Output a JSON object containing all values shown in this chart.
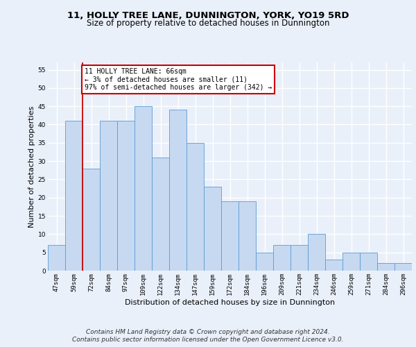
{
  "title": "11, HOLLY TREE LANE, DUNNINGTON, YORK, YO19 5RD",
  "subtitle": "Size of property relative to detached houses in Dunnington",
  "xlabel": "Distribution of detached houses by size in Dunnington",
  "ylabel": "Number of detached properties",
  "bar_labels": [
    "47sqm",
    "59sqm",
    "72sqm",
    "84sqm",
    "97sqm",
    "109sqm",
    "122sqm",
    "134sqm",
    "147sqm",
    "159sqm",
    "172sqm",
    "184sqm",
    "196sqm",
    "209sqm",
    "221sqm",
    "234sqm",
    "246sqm",
    "259sqm",
    "271sqm",
    "284sqm",
    "296sqm"
  ],
  "bar_values": [
    7,
    41,
    28,
    41,
    41,
    45,
    31,
    44,
    35,
    23,
    19,
    19,
    5,
    7,
    7,
    10,
    3,
    5,
    5,
    2,
    2
  ],
  "bar_color": "#c6d9f0",
  "bar_edge_color": "#5b9bd5",
  "vline_x": 1.5,
  "vline_color": "#cc0000",
  "annotation_text": "11 HOLLY TREE LANE: 66sqm\n← 3% of detached houses are smaller (11)\n97% of semi-detached houses are larger (342) →",
  "annotation_box_color": "white",
  "annotation_box_edge": "#cc0000",
  "ylim": [
    0,
    57
  ],
  "yticks": [
    0,
    5,
    10,
    15,
    20,
    25,
    30,
    35,
    40,
    45,
    50,
    55
  ],
  "footer": "Contains HM Land Registry data © Crown copyright and database right 2024.\nContains public sector information licensed under the Open Government Licence v3.0.",
  "bg_color": "#eaf0fa",
  "plot_bg_color": "#eaf0fa",
  "grid_color": "#ffffff",
  "title_fontsize": 9.5,
  "subtitle_fontsize": 8.5,
  "axis_label_fontsize": 8,
  "tick_fontsize": 6.5,
  "footer_fontsize": 6.5
}
